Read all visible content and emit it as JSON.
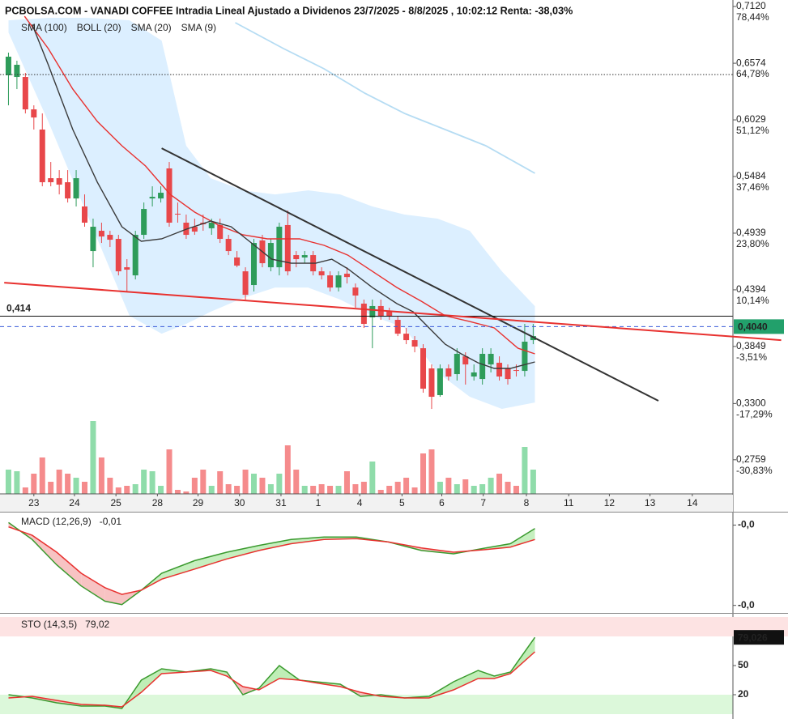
{
  "chart_data": [
    {
      "type": "candlestick",
      "title": "PCBOLSA.COM - VANADI COFFEE Intradia Lineal Ajustado a Dividenos 23/7/2025 - 8/8/2025 , 10:02:12 Renta: -38,03%",
      "open": [
        0.6458,
        0.6442,
        0.6442,
        0.613,
        0.5936,
        0.5468,
        0.5468,
        0.5429,
        0.5273,
        0.5196,
        0.4767,
        0.4962,
        0.4923,
        0.4884,
        0.4611,
        0.4533,
        0.4923,
        0.5273,
        0.5273,
        0.5562,
        0.5126,
        0.504,
        0.5001,
        0.504,
        0.4986,
        0.5017,
        0.4884,
        0.4705,
        0.4572,
        0.444,
        0.4869,
        0.4611,
        0.4611,
        0.5017,
        0.4728,
        0.4705,
        0.4728,
        0.4572,
        0.4533,
        0.4416,
        0.4549,
        0.4416,
        0.4261,
        0.4129,
        0.4238,
        0.4183,
        0.4105,
        0.3972,
        0.391,
        0.3832,
        0.3638,
        0.3381,
        0.3638,
        0.3583,
        0.3754,
        0.356,
        0.3536,
        0.3676,
        0.3692,
        0.3638,
        0.3622,
        0.3614,
        0.391
      ],
      "high": [
        0.6676,
        0.6598,
        0.6481,
        0.6169,
        0.6091,
        0.5624,
        0.5546,
        0.5546,
        0.5546,
        0.5312,
        0.5079,
        0.504,
        0.4962,
        0.4923,
        0.4689,
        0.4962,
        0.5234,
        0.539,
        0.539,
        0.5624,
        0.5234,
        0.5118,
        0.5079,
        0.5118,
        0.5079,
        0.5079,
        0.4923,
        0.4767,
        0.4611,
        0.4884,
        0.4923,
        0.4884,
        0.504,
        0.5157,
        0.4767,
        0.4767,
        0.4767,
        0.4611,
        0.4572,
        0.4572,
        0.4611,
        0.4455,
        0.43,
        0.43,
        0.43,
        0.4222,
        0.4144,
        0.4027,
        0.3949,
        0.3871,
        0.3676,
        0.3676,
        0.3676,
        0.3832,
        0.3793,
        0.3676,
        0.3832,
        0.3832,
        0.3754,
        0.3676,
        0.3676,
        0.4066,
        0.4066
      ],
      "low": [
        0.6169,
        0.6325,
        0.6091,
        0.5936,
        0.539,
        0.539,
        0.5312,
        0.5234,
        0.5196,
        0.5001,
        0.4611,
        0.4845,
        0.4806,
        0.4533,
        0.4378,
        0.4494,
        0.4884,
        0.5196,
        0.5234,
        0.5001,
        0.504,
        0.4884,
        0.4923,
        0.4962,
        0.4923,
        0.4845,
        0.4728,
        0.4611,
        0.43,
        0.4378,
        0.4611,
        0.4572,
        0.4533,
        0.4533,
        0.4611,
        0.465,
        0.4533,
        0.4494,
        0.4378,
        0.4378,
        0.4455,
        0.4222,
        0.4027,
        0.3832,
        0.4105,
        0.4105,
        0.3949,
        0.3871,
        0.3793,
        0.3404,
        0.3248,
        0.3365,
        0.3521,
        0.3521,
        0.3482,
        0.3521,
        0.3482,
        0.3599,
        0.3521,
        0.3482,
        0.356,
        0.356,
        0.3871
      ],
      "close": [
        0.6637,
        0.6559,
        0.613,
        0.6052,
        0.5429,
        0.5429,
        0.5406,
        0.5273,
        0.5468,
        0.504,
        0.5001,
        0.4907,
        0.4876,
        0.4572,
        0.4588,
        0.4923,
        0.5172,
        0.5289,
        0.5328,
        0.504,
        0.5118,
        0.4923,
        0.4954,
        0.5025,
        0.504,
        0.4884,
        0.4767,
        0.4627,
        0.4346,
        0.4845,
        0.465,
        0.4845,
        0.5001,
        0.4572,
        0.4689,
        0.4728,
        0.4572,
        0.4533,
        0.4416,
        0.4533,
        0.4517,
        0.4339,
        0.4066,
        0.4238,
        0.4144,
        0.4144,
        0.3972,
        0.391,
        0.3848,
        0.3443,
        0.3365,
        0.3638,
        0.356,
        0.3778,
        0.3676,
        0.3599,
        0.3778,
        0.3778,
        0.356,
        0.3536,
        0.3614,
        0.3895,
        0.3949
      ],
      "volume": [
        30,
        28,
        8,
        25,
        45,
        15,
        30,
        25,
        20,
        15,
        90,
        45,
        20,
        8,
        10,
        12,
        30,
        28,
        10,
        55,
        5,
        3,
        20,
        30,
        10,
        28,
        12,
        10,
        30,
        25,
        20,
        12,
        25,
        60,
        30,
        10,
        10,
        12,
        10,
        10,
        28,
        12,
        15,
        40,
        5,
        10,
        15,
        20,
        8,
        50,
        55,
        15,
        20,
        12,
        18,
        10,
        12,
        20,
        25,
        15,
        10,
        58,
        30
      ],
      "volume_lim": [
        0,
        100
      ],
      "colors": {
        "up": "#2e9c5a",
        "down": "#e8474a",
        "volume_up": "#8fdcaa",
        "volume_down": "#f58b8c",
        "positive": "#2e9e5b",
        "negative": "#e8474a"
      },
      "xlim": [
        -1,
        85.6
      ],
      "xticks": [
        {
          "value": 3.0,
          "label": "23"
        },
        {
          "value": 7.8,
          "label": "24"
        },
        {
          "value": 12.7,
          "label": "25"
        },
        {
          "value": 17.6,
          "label": "28"
        },
        {
          "value": 22.4,
          "label": "29"
        },
        {
          "value": 27.3,
          "label": "30"
        },
        {
          "value": 32.2,
          "label": "31"
        },
        {
          "value": 36.6,
          "label": "1"
        },
        {
          "value": 41.5,
          "label": "4"
        },
        {
          "value": 46.5,
          "label": "5"
        },
        {
          "value": 51.2,
          "label": "6"
        },
        {
          "value": 56.1,
          "label": "7"
        },
        {
          "value": 61.2,
          "label": "8"
        },
        {
          "value": 66.2,
          "label": "11"
        },
        {
          "value": 71.0,
          "label": "12"
        },
        {
          "value": 75.8,
          "label": "13"
        },
        {
          "value": 80.8,
          "label": "14"
        }
      ],
      "ylim": [
        0.2446,
        0.712
      ],
      "yticks": [
        {
          "value": 0.712,
          "label": "0,7120"
        },
        {
          "value": 0.6574,
          "label": "0,6574"
        },
        {
          "value": 0.6029,
          "label": "0,6029"
        },
        {
          "value": 0.5484,
          "label": "0,5484"
        },
        {
          "value": 0.4939,
          "label": "0,4939"
        },
        {
          "value": 0.4394,
          "label": "0,4394"
        },
        {
          "value": 0.3849,
          "label": "0,3849"
        },
        {
          "value": 0.33,
          "label": "0,3300"
        },
        {
          "value": 0.2759,
          "label": "0,2759"
        }
      ],
      "y2lim": [
        -38.7,
        78.44
      ],
      "y2ticks": [
        {
          "value": 78.44,
          "label": "78,44%"
        },
        {
          "value": 64.78,
          "label": "64,78%"
        },
        {
          "value": 51.12,
          "label": "51,12%"
        },
        {
          "value": 37.46,
          "label": "37,46%"
        },
        {
          "value": 23.8,
          "label": "23,80%"
        },
        {
          "value": 10.14,
          "label": "10,14%"
        },
        {
          "value": -3.51,
          "label": "-3,51%"
        },
        {
          "value": -17.29,
          "label": "-17,29%"
        },
        {
          "value": -30.83,
          "label": "-30,83%"
        }
      ],
      "series": [
        {
          "name": "SMA (100)",
          "color": "#b5dcf3",
          "legend_color": "#8cc8ee",
          "x": [
            26.8,
            32.5,
            37.3,
            42.1,
            46.8,
            51.6,
            56.4,
            62.2
          ],
          "values": [
            0.6964,
            0.6715,
            0.652,
            0.6286,
            0.6091,
            0.5936,
            0.578,
            0.5515
          ]
        },
        {
          "name": "BOLL (20)",
          "color": "#dcefff",
          "legend_color": "#c8c8c8",
          "x": [
            0,
            4.7,
            9.5,
            14.3,
            18.1,
            21,
            23.9,
            27.7,
            31.5,
            35.4,
            39.2,
            43,
            46.8,
            50.7,
            54.5,
            58.3,
            62.2
          ],
          "upper": [
            0.6987,
            0.7011,
            0.7011,
            0.6987,
            0.6792,
            0.578,
            0.5468,
            0.5351,
            0.5312,
            0.5351,
            0.5312,
            0.5196,
            0.5118,
            0.5079,
            0.4962,
            0.4572,
            0.4237
          ],
          "lower": [
            0.687,
            0.6014,
            0.5079,
            0.4144,
            0.3972,
            0.4066,
            0.4183,
            0.4315,
            0.4416,
            0.4416,
            0.43,
            0.4144,
            0.4027,
            0.3599,
            0.3365,
            0.3248,
            0.331
          ]
        },
        {
          "name": "SMA (20)",
          "color": "#e8312f",
          "legend_color": "#e8312f",
          "x": [
            1.9,
            4.7,
            7.6,
            10.5,
            13.4,
            16.2,
            19.1,
            22,
            24.8,
            27.7,
            30.6,
            34.4,
            37.3,
            40.1,
            43,
            45.9,
            48.8,
            51.6,
            54.5,
            57.4,
            60.2,
            62.2
          ],
          "values": [
            0.7026,
            0.6715,
            0.6325,
            0.6014,
            0.578,
            0.5585,
            0.5312,
            0.5141,
            0.5017,
            0.4923,
            0.4884,
            0.4884,
            0.4822,
            0.4728,
            0.4572,
            0.4416,
            0.4284,
            0.4144,
            0.4089,
            0.4027,
            0.3832,
            0.3778
          ]
        },
        {
          "name": "SMA (9)",
          "color": "#3a3a3a",
          "legend_color": "#111111",
          "x": [
            2.8,
            4.7,
            7.6,
            10.5,
            13.4,
            15.7,
            18.1,
            21,
            23.9,
            26.3,
            28.7,
            31.1,
            33.4,
            36.3,
            38.2,
            40.1,
            43,
            45.9,
            47.8,
            49.7,
            51.6,
            53.5,
            55.5,
            57.4,
            59.3,
            62.2
          ],
          "values": [
            0.6948,
            0.6559,
            0.5936,
            0.5429,
            0.5001,
            0.4861,
            0.4884,
            0.4977,
            0.5056,
            0.5001,
            0.4845,
            0.4689,
            0.465,
            0.465,
            0.4689,
            0.4596,
            0.4416,
            0.4261,
            0.4183,
            0.4027,
            0.3871,
            0.3778,
            0.3692,
            0.3638,
            0.3638,
            0.37
          ]
        }
      ],
      "trendlines": [
        {
          "color": "#333333",
          "x": [
            18.1,
            76.8
          ],
          "values": [
            0.5756,
            0.3326
          ]
        },
        {
          "color": "#e8312f",
          "x": [
            -0.5,
            91.3
          ],
          "values": [
            0.4463,
            0.391
          ]
        }
      ],
      "levels": [
        {
          "value": 0.6465,
          "color": "#333333",
          "style": "dotted"
        },
        {
          "value": 0.414,
          "label": "0,414",
          "color": "#111111",
          "style": "solid"
        },
        {
          "value": 0.404,
          "label": "0,4040",
          "color": "#3a5bd9",
          "style": "dashed",
          "box": "#22a06b"
        }
      ]
    },
    {
      "type": "line",
      "title": "MACD (12,26,9)",
      "current": {
        "value": -0.01,
        "label": "-0,01"
      },
      "ylim": [
        -0.0428,
        0.0032
      ],
      "yticks": [
        {
          "value": -0.002,
          "label": "-0,0"
        },
        {
          "value": -0.04,
          "label": "-0,0"
        }
      ],
      "tick_color": "#e8312f",
      "fill_up": "#c6efbf",
      "fill_down": "#f7c3c3",
      "series": [
        {
          "color": "#3a9a2e",
          "x": [
            0,
            2.8,
            5.7,
            8.6,
            11.4,
            13.4,
            15.7,
            18.1,
            22,
            25.8,
            29.6,
            33.4,
            37.3,
            41.1,
            44.9,
            48.8,
            52.6,
            56.4,
            59.3,
            62.2
          ],
          "values": [
            -0.0008,
            -0.0088,
            -0.0208,
            -0.0308,
            -0.038,
            -0.0396,
            -0.0328,
            -0.0248,
            -0.0188,
            -0.0148,
            -0.0116,
            -0.0088,
            -0.0076,
            -0.0076,
            -0.01,
            -0.014,
            -0.0156,
            -0.0128,
            -0.0108,
            -0.0036
          ]
        },
        {
          "color": "#e8312f",
          "x": [
            0,
            2.8,
            5.7,
            8.6,
            11.4,
            13.4,
            15.7,
            18.1,
            22,
            25.8,
            29.6,
            33.4,
            37.3,
            41.1,
            44.9,
            48.8,
            52.6,
            56.4,
            59.3,
            62.2
          ],
          "values": [
            -0.0028,
            -0.0068,
            -0.0148,
            -0.0248,
            -0.0316,
            -0.0348,
            -0.0328,
            -0.0276,
            -0.0228,
            -0.018,
            -0.014,
            -0.0108,
            -0.0088,
            -0.0084,
            -0.01,
            -0.0128,
            -0.0148,
            -0.0136,
            -0.0124,
            -0.0088
          ]
        }
      ]
    },
    {
      "type": "line",
      "title": "STO (14,3,5)",
      "current": {
        "value": 79.02,
        "label": "79,02"
      },
      "value_box": {
        "value": 79.026,
        "label": "79,026"
      },
      "ylim": [
        0,
        100
      ],
      "yticks": [
        50,
        20
      ],
      "tick_color": "#111111",
      "bands": [
        {
          "from": 80,
          "to": 100,
          "color": "#fde3e3"
        },
        {
          "from": 0,
          "to": 20,
          "color": "#dcf8da"
        }
      ],
      "fill_up": "#bfeeb6",
      "fill_down": "#f6bcbc",
      "series": [
        {
          "color": "#3a9a2e",
          "x": [
            0,
            2.8,
            5.7,
            8.6,
            11.4,
            13.4,
            15.7,
            18.1,
            21,
            23.9,
            25.8,
            27.7,
            29.6,
            32,
            34.4,
            37.3,
            39.2,
            41.6,
            44,
            46.8,
            49.7,
            52.6,
            55.5,
            57.4,
            59.3,
            62.2
          ],
          "values": [
            20,
            16.7,
            11.7,
            8.3,
            8.3,
            5.8,
            35,
            46.7,
            43.3,
            46.7,
            43.3,
            20,
            26.7,
            50,
            35,
            32.5,
            30.8,
            18.3,
            20,
            16.7,
            18.3,
            33.3,
            45,
            39.2,
            43.3,
            79.02
          ]
        },
        {
          "color": "#e8312f",
          "x": [
            0,
            2.8,
            5.7,
            8.6,
            11.4,
            13.4,
            15.7,
            18.1,
            21,
            23.9,
            25.8,
            27.7,
            29.6,
            32,
            34.4,
            37.3,
            39.2,
            41.6,
            44,
            46.8,
            49.7,
            52.6,
            55.5,
            57.4,
            59.3,
            62.2
          ],
          "values": [
            16.7,
            18.3,
            14.2,
            10,
            9.2,
            7.5,
            22.5,
            41.7,
            43.3,
            45,
            39.2,
            28.3,
            25,
            36.7,
            35,
            30.8,
            28.3,
            22.5,
            18.3,
            16.7,
            16.7,
            25,
            36.7,
            36.7,
            41.7,
            64.2
          ]
        }
      ]
    }
  ]
}
